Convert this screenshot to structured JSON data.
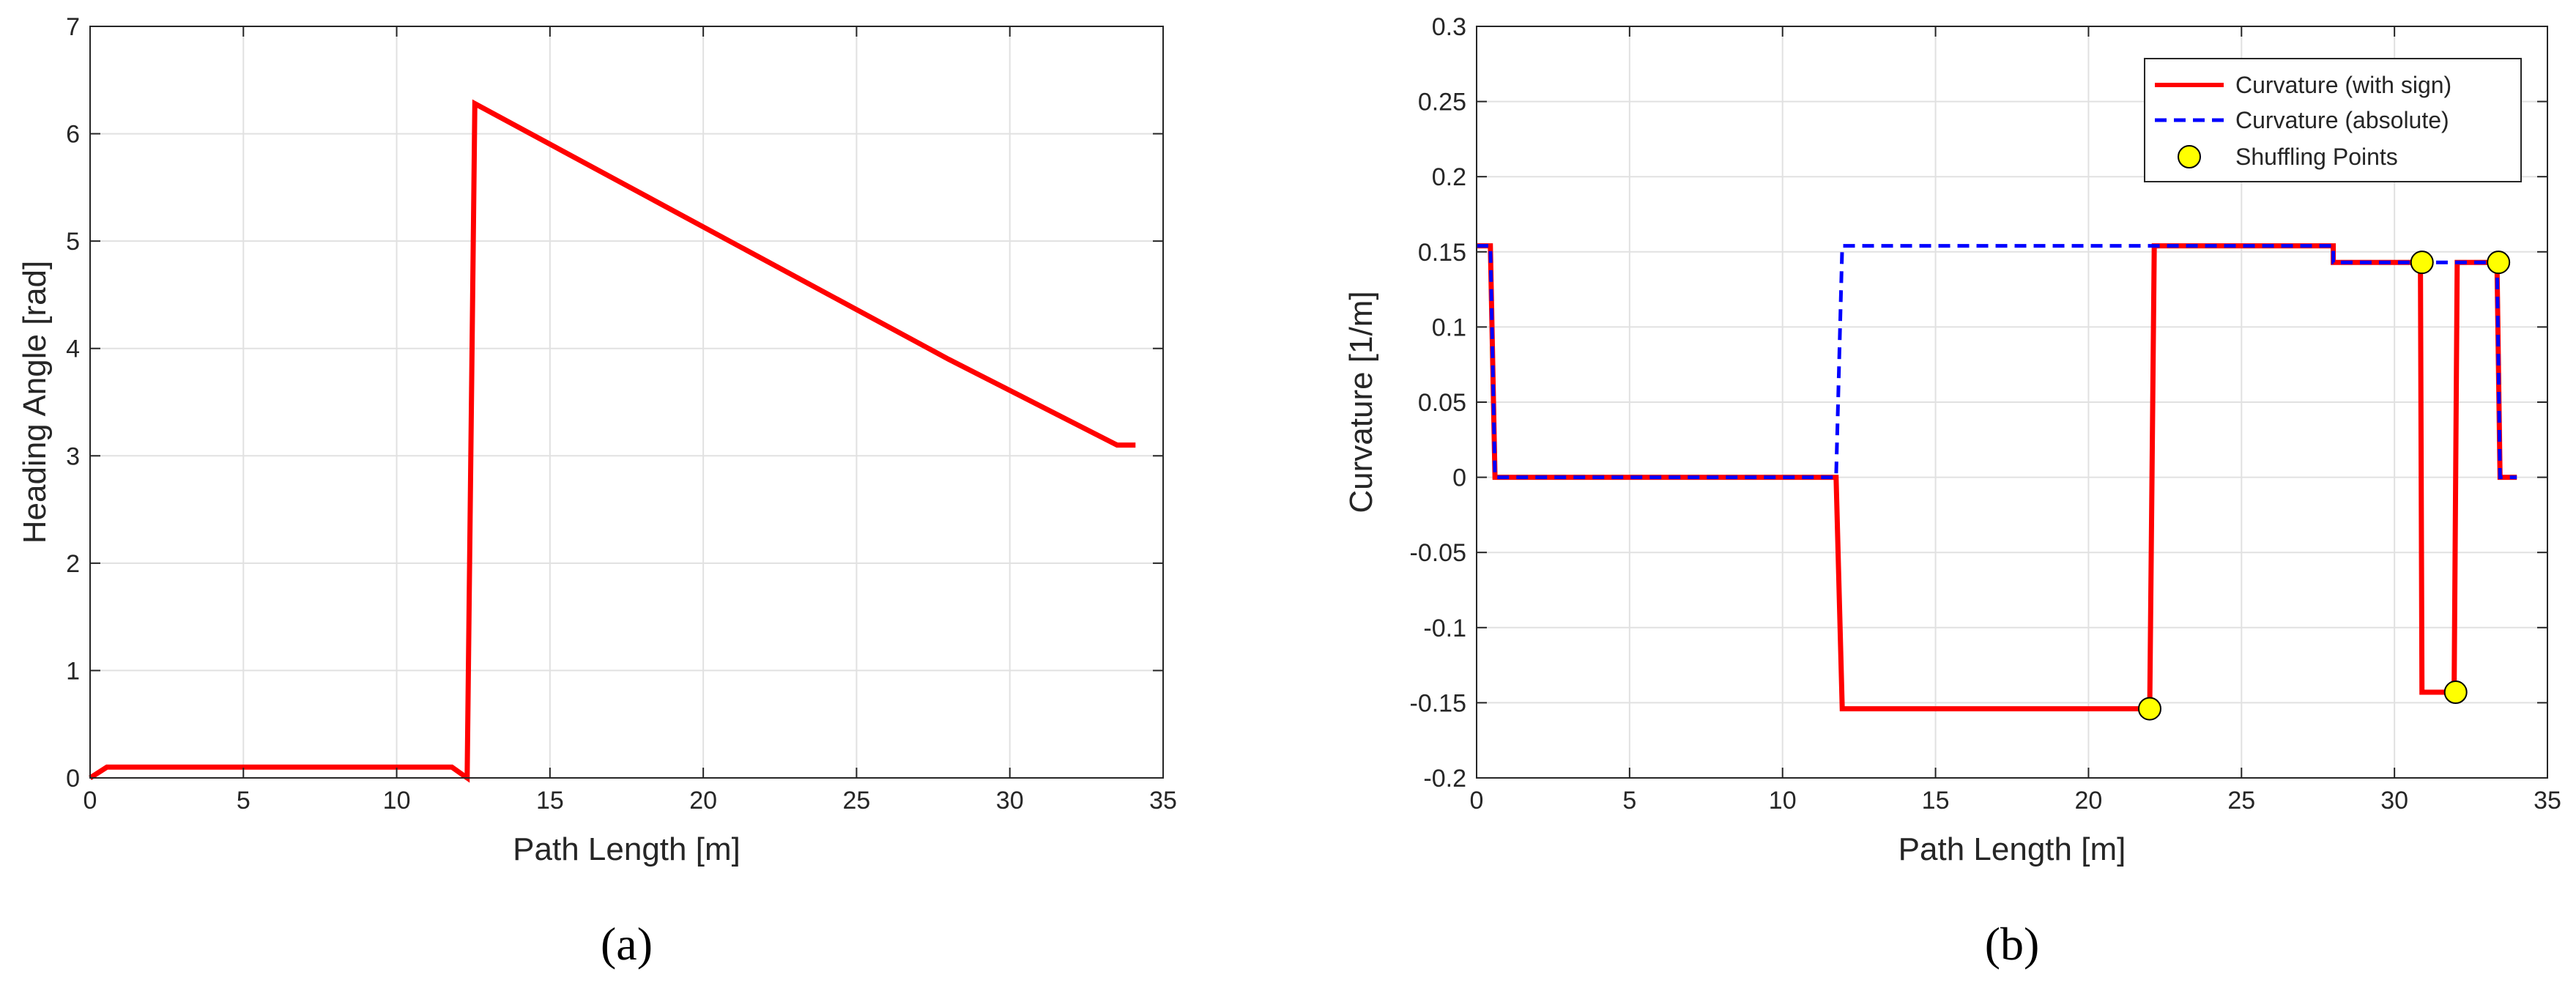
{
  "colors": {
    "red": "#ff0000",
    "blue": "#0000ff",
    "marker": "#ffff00",
    "grid": "#e1e1e1",
    "axis": "#262626"
  },
  "chart_data": [
    {
      "type": "line",
      "panel_label": "(a)",
      "xlabel": "Path Length [m]",
      "ylabel": "Heading Angle [rad]",
      "xlim": [
        0,
        35
      ],
      "ylim": [
        0,
        7
      ],
      "xticks": [
        0,
        5,
        10,
        15,
        20,
        25,
        30,
        35
      ],
      "yticks": [
        0,
        1,
        2,
        3,
        4,
        5,
        6,
        7
      ],
      "xtick_labels": [
        "0",
        "5",
        "10",
        "15",
        "20",
        "25",
        "30",
        "35"
      ],
      "ytick_labels": [
        "0",
        "1",
        "2",
        "3",
        "4",
        "5",
        "6",
        "7"
      ],
      "grid": true,
      "series": [
        {
          "color": "#ff0000",
          "style": "solid",
          "x": [
            0,
            0.55,
            11.8,
            12.3,
            12.55,
            28,
            33.5,
            34.1
          ],
          "y": [
            0,
            0.1,
            0.1,
            0.0,
            6.28,
            3.9,
            3.1,
            3.1
          ]
        }
      ]
    },
    {
      "type": "line",
      "panel_label": "(b)",
      "xlabel": "Path Length [m]",
      "ylabel": "Curvature [1/m]",
      "xlim": [
        0,
        35
      ],
      "ylim": [
        -0.2,
        0.3
      ],
      "xticks": [
        0,
        5,
        10,
        15,
        20,
        25,
        30,
        35
      ],
      "yticks": [
        -0.2,
        -0.15,
        -0.1,
        -0.05,
        0,
        0.05,
        0.1,
        0.15,
        0.2,
        0.25,
        0.3
      ],
      "xtick_labels": [
        "0",
        "5",
        "10",
        "15",
        "20",
        "25",
        "30",
        "35"
      ],
      "ytick_labels": [
        "-0.2",
        "-0.15",
        "-0.1",
        "-0.05",
        "0",
        "0.05",
        "0.1",
        "0.15",
        "0.2",
        "0.25",
        "0.3"
      ],
      "grid": true,
      "legend_position": "top-right",
      "legend": [
        "Curvature (with sign)",
        "Curvature (absolute)",
        "Shuffling Points"
      ],
      "series": [
        {
          "name": "Curvature (with sign)",
          "color": "#ff0000",
          "style": "solid",
          "x": [
            0,
            0.45,
            0.6,
            11.75,
            11.95,
            22.0,
            22.15,
            28.0,
            28.0,
            30.85,
            30.9,
            31.95,
            32.05,
            33.35,
            33.45,
            34.0
          ],
          "y": [
            0.154,
            0.154,
            0,
            0,
            -0.154,
            -0.154,
            0.154,
            0.154,
            0.143,
            0.143,
            -0.143,
            -0.143,
            0.143,
            0.143,
            0,
            0
          ]
        },
        {
          "name": "Curvature (absolute)",
          "color": "#0000ff",
          "style": "dashed",
          "x": [
            0,
            0.45,
            0.6,
            11.75,
            11.95,
            28.0,
            28.0,
            33.35,
            33.45,
            34.0
          ],
          "y": [
            0.154,
            0.154,
            0,
            0,
            0.154,
            0.154,
            0.143,
            0.143,
            0,
            0
          ]
        },
        {
          "name": "Shuffling Points",
          "type": "scatter",
          "color": "#ffff00",
          "x": [
            22.0,
            30.9,
            32.0,
            33.4
          ],
          "y": [
            -0.154,
            0.143,
            -0.143,
            0.143
          ]
        }
      ]
    }
  ]
}
